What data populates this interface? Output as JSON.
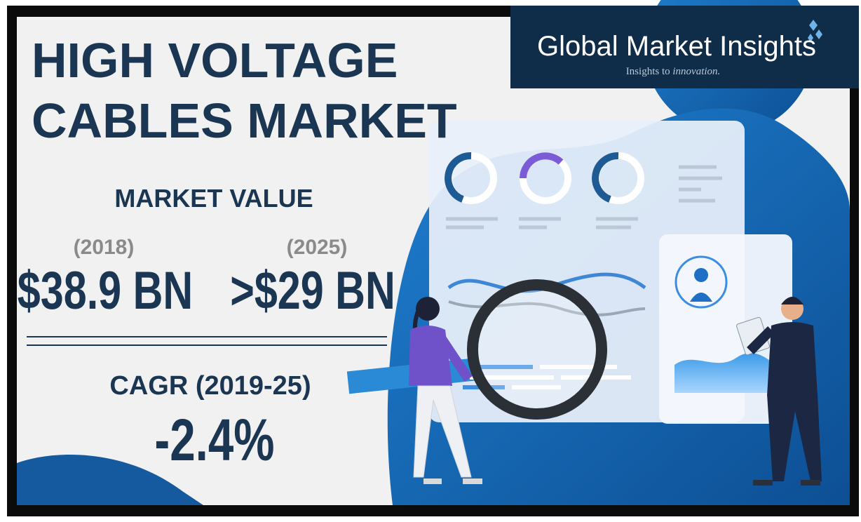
{
  "header": {
    "title_lines": [
      "HIGH VOLTAGE",
      "CABLES MARKET"
    ]
  },
  "logo": {
    "name": "Global Market Insights",
    "tagline_start": "Insights to",
    "tagline_end": "innovation."
  },
  "market_value": {
    "label": "MARKET VALUE",
    "items": [
      {
        "year": "(2018)",
        "value": "$38.9 BN"
      },
      {
        "year": "(2025)",
        "value": ">$29 BN"
      }
    ]
  },
  "cagr": {
    "label": "CAGR (2019-25)",
    "value": "-2.4%"
  }
}
